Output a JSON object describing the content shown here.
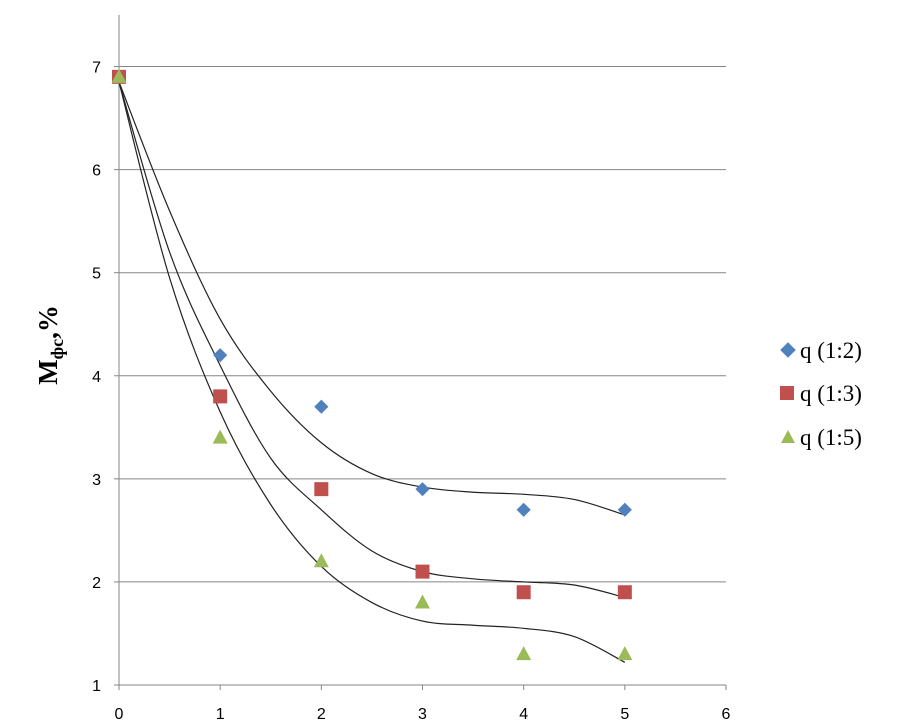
{
  "chart_data": {
    "type": "scatter",
    "title": "",
    "xlabel": "",
    "ylabel": "Mфс,%",
    "ylabel_main": "M",
    "ylabel_sub": "фс",
    "ylabel_tail": ",%",
    "xlim": [
      0,
      6
    ],
    "ylim": [
      1,
      7.5
    ],
    "x_ticks": [
      "0",
      "1",
      "2",
      "3",
      "4",
      "5",
      "6"
    ],
    "y_ticks": [
      "1",
      "2",
      "3",
      "4",
      "5",
      "6",
      "7"
    ],
    "grid": true,
    "legend_position": "right",
    "series": [
      {
        "name": "q (1:2)",
        "marker": "diamond",
        "color": "#4F81BD",
        "x": [
          0,
          1,
          2,
          3,
          4,
          5
        ],
        "y": [
          6.9,
          4.2,
          3.7,
          2.9,
          2.7,
          2.7
        ]
      },
      {
        "name": "q (1:3)",
        "marker": "square",
        "color": "#C0504D",
        "x": [
          0,
          1,
          2,
          3,
          4,
          5
        ],
        "y": [
          6.9,
          3.8,
          2.9,
          2.1,
          1.9,
          1.9
        ]
      },
      {
        "name": "q (1:5)",
        "marker": "triangle",
        "color": "#9BBB59",
        "x": [
          0,
          1,
          2,
          3,
          4,
          5
        ],
        "y": [
          6.9,
          3.4,
          2.2,
          1.8,
          1.3,
          1.3
        ]
      }
    ],
    "trendlines": [
      {
        "series": "q (1:2)",
        "x": [
          0,
          0.5,
          1,
          1.5,
          2,
          2.5,
          3,
          3.5,
          4,
          4.5,
          5
        ],
        "y": [
          6.85,
          5.6,
          4.55,
          3.85,
          3.35,
          3.05,
          2.92,
          2.87,
          2.85,
          2.8,
          2.65
        ]
      },
      {
        "series": "q (1:3)",
        "x": [
          0,
          0.5,
          1,
          1.5,
          2,
          2.5,
          3,
          3.5,
          4,
          4.5,
          5
        ],
        "y": [
          6.85,
          5.2,
          4.1,
          3.2,
          2.7,
          2.3,
          2.1,
          2.03,
          2.0,
          1.97,
          1.85
        ]
      },
      {
        "series": "q (1:5)",
        "x": [
          0,
          0.5,
          1,
          1.5,
          2,
          2.5,
          3,
          3.5,
          4,
          4.5,
          5
        ],
        "y": [
          6.85,
          4.95,
          3.65,
          2.75,
          2.15,
          1.8,
          1.62,
          1.58,
          1.55,
          1.47,
          1.22
        ]
      }
    ]
  }
}
